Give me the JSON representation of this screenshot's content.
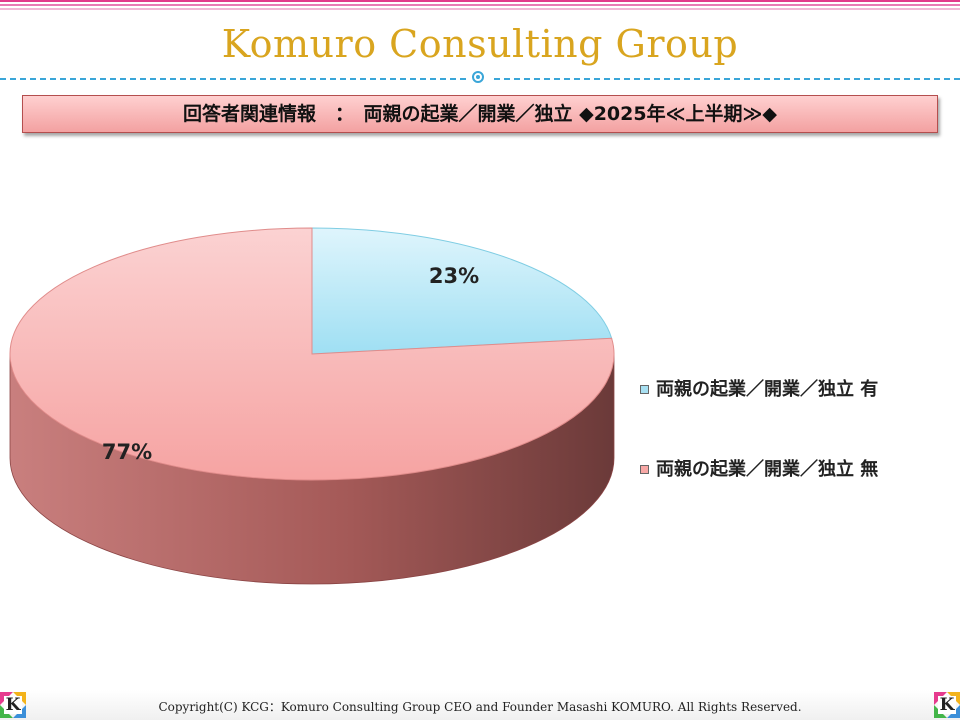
{
  "header": {
    "brand": "Komuro Consulting Group",
    "subtitle": "回答者関連情報　：　両親の起業／開業／独立 ◆2025年≪上半期≫◆"
  },
  "chart_data": {
    "type": "pie",
    "title": "",
    "categories": [
      "両親の起業／開業／独立 有",
      "両親の起業／開業／独立 無"
    ],
    "values": [
      23,
      77
    ],
    "labels": [
      "23%",
      "77%"
    ],
    "colors": [
      "#a8e0f2",
      "#f8a8a6"
    ],
    "legend_position": "right",
    "three_d": true
  },
  "footer": {
    "copyright": "Copyright(C)  KCG：Komuro Consulting Group CEO and Founder Masashi KOMURO. All Rights Reserved."
  },
  "logo": {
    "letter": "K"
  },
  "theme": {
    "accent": "#d9a51f",
    "dash": "#3aa6d8",
    "title_box": "#f3a1a1"
  }
}
